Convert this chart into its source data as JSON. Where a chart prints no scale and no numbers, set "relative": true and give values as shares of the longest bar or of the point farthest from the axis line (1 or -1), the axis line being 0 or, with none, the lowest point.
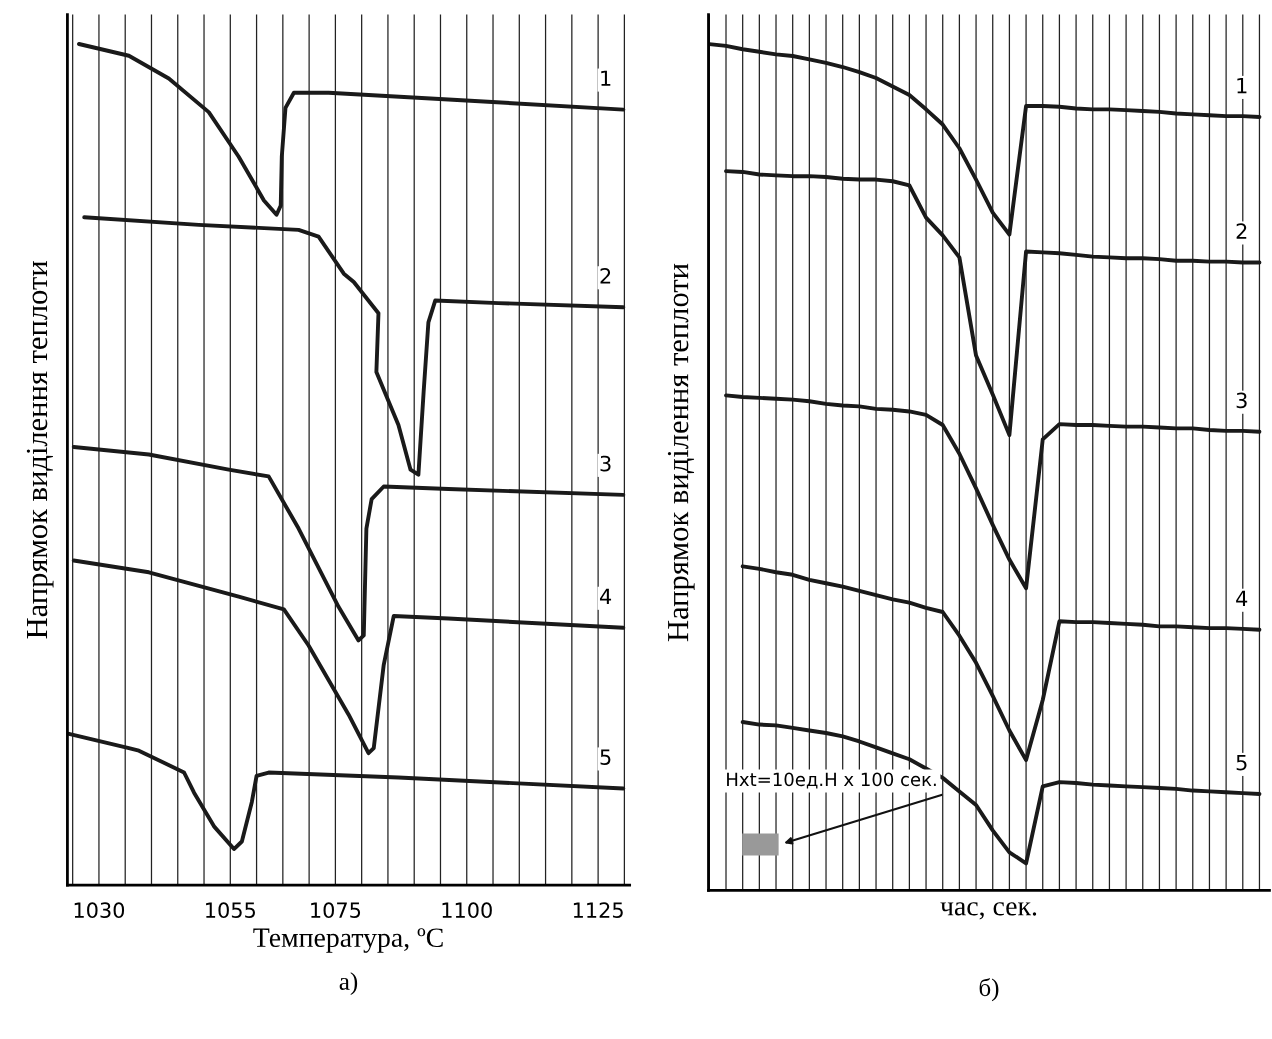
{
  "chart_data": [
    {
      "type": "line",
      "relative": true,
      "xlabel": "Температура, ºC",
      "ylabel": "Напрямок виділення теплоти",
      "annotations": [
        "а)"
      ],
      "xlim": [
        1024,
        1131
      ],
      "xticks": [
        {
          "value": 1025,
          "label": null
        },
        1030,
        {
          "value": 1035,
          "label": null
        },
        {
          "value": 1040,
          "label": null
        },
        {
          "value": 1045,
          "label": null
        },
        {
          "value": 1050,
          "label": null
        },
        1055,
        {
          "value": 1060,
          "label": null
        },
        {
          "value": 1065,
          "label": null
        },
        {
          "value": 1070,
          "label": null
        },
        1075,
        {
          "value": 1080,
          "label": null
        },
        {
          "value": 1085,
          "label": null
        },
        {
          "value": 1090,
          "label": null
        },
        {
          "value": 1095,
          "label": null
        },
        1100,
        {
          "value": 1105,
          "label": null
        },
        {
          "value": 1110,
          "label": null
        },
        {
          "value": 1115,
          "label": null
        },
        {
          "value": 1120,
          "label": null
        },
        1125,
        {
          "value": 1130,
          "label": null
        }
      ],
      "grid": "x",
      "tick_labels": "x",
      "marker": "none",
      "line_style": "solid",
      "series": [
        {
          "name": "1",
          "color": "#1a1a1a",
          "x": [
            1026.2,
            1035.7,
            1043.3,
            1050.9,
            1056.6,
            1061.4,
            1063.8,
            1064.6,
            1064.8,
            1065.5,
            1067.1,
            1073.7,
            1096.5,
            1129.8
          ],
          "values": [
            1.0,
            0.986,
            0.959,
            0.919,
            0.866,
            0.814,
            0.797,
            0.808,
            0.866,
            0.924,
            0.942,
            0.942,
            0.934,
            0.922
          ]
        },
        {
          "name": "2",
          "color": "#1a1a1a",
          "x": [
            1027.2,
            1049,
            1068,
            1071.8,
            1076.6,
            1078.5,
            1083.2,
            1082.8,
            1087,
            1089.3,
            1090.8,
            1091.8,
            1092.7,
            1094,
            1106,
            1129.8
          ],
          "values": [
            0.794,
            0.785,
            0.779,
            0.771,
            0.727,
            0.717,
            0.68,
            0.61,
            0.547,
            0.494,
            0.488,
            0.587,
            0.669,
            0.695,
            0.692,
            0.687
          ]
        },
        {
          "name": "3",
          "color": "#1a1a1a",
          "x": [
            1025.2,
            1039.5,
            1054.7,
            1062.3,
            1068,
            1075.6,
            1079.4,
            1080.4,
            1080.9,
            1081.9,
            1084.2,
            1096.5,
            1129.8
          ],
          "values": [
            0.521,
            0.512,
            0.494,
            0.486,
            0.424,
            0.331,
            0.291,
            0.297,
            0.424,
            0.459,
            0.474,
            0.471,
            0.464
          ]
        },
        {
          "name": "4",
          "color": "#1a1a1a",
          "x": [
            1025.2,
            1039.5,
            1056.6,
            1065.2,
            1069.9,
            1077.5,
            1081.3,
            1082.3,
            1084.2,
            1086.1,
            1096.5,
            1129.8
          ],
          "values": [
            0.386,
            0.372,
            0.343,
            0.328,
            0.285,
            0.203,
            0.157,
            0.163,
            0.262,
            0.32,
            0.317,
            0.306
          ]
        },
        {
          "name": "5",
          "color": "#1a1a1a",
          "x": [
            1024.3,
            1035.7,
            1037.6,
            1046.2,
            1048.1,
            1051.9,
            1055.7,
            1057.2,
            1059.1,
            1060,
            1062.3,
            1087,
            1129.8
          ],
          "values": [
            0.18,
            0.163,
            0.16,
            0.134,
            0.11,
            0.07,
            0.043,
            0.052,
            0.099,
            0.13,
            0.134,
            0.128,
            0.115
          ]
        }
      ]
    },
    {
      "type": "line",
      "relative": true,
      "xlabel": "час, сек.",
      "ylabel": "Напрямок виділення теплоти",
      "annotations": [
        "б)",
        "Hxt=10ед.Н x 100 сек."
      ],
      "categories": [
        null,
        null,
        null,
        null,
        null,
        null,
        null,
        null,
        null,
        null,
        null,
        null,
        null,
        null,
        null,
        null,
        null,
        null,
        null,
        null,
        null,
        null,
        null,
        null,
        null,
        null,
        null,
        null,
        null,
        null,
        null,
        null,
        null,
        null
      ],
      "grid": "x",
      "tick_labels": false,
      "marker": "none",
      "line_style": "solid",
      "series": [
        {
          "name": "1",
          "color": "#1a1a1a",
          "values": [
            1.0,
            0.998,
            0.994,
            0.991,
            0.988,
            0.986,
            0.982,
            0.978,
            0.973,
            0.967,
            0.96,
            0.95,
            0.94,
            0.923,
            0.905,
            0.877,
            0.84,
            0.801,
            0.775,
            0.927,
            0.927,
            0.926,
            0.924,
            0.923,
            0.923,
            0.922,
            0.921,
            0.92,
            0.918,
            0.917,
            0.916,
            0.915,
            0.915,
            0.914
          ]
        },
        {
          "name": "2",
          "color": "#1a1a1a",
          "values": [
            null,
            0.85,
            0.849,
            0.846,
            0.845,
            0.844,
            0.844,
            0.843,
            0.841,
            0.84,
            0.84,
            0.838,
            0.833,
            0.795,
            0.774,
            0.748,
            0.632,
            0.586,
            0.538,
            0.755,
            0.754,
            0.753,
            0.751,
            0.749,
            0.748,
            0.747,
            0.747,
            0.746,
            0.744,
            0.744,
            0.743,
            0.743,
            0.742,
            0.742
          ]
        },
        {
          "name": "3",
          "color": "#1a1a1a",
          "values": [
            null,
            0.585,
            0.583,
            0.582,
            0.581,
            0.58,
            0.578,
            0.575,
            0.573,
            0.572,
            0.569,
            0.568,
            0.566,
            0.562,
            0.55,
            0.516,
            0.475,
            0.432,
            0.391,
            0.357,
            0.533,
            0.551,
            0.55,
            0.55,
            0.549,
            0.548,
            0.548,
            0.547,
            0.546,
            0.546,
            0.544,
            0.543,
            0.543,
            0.542
          ]
        },
        {
          "name": "4",
          "color": "#1a1a1a",
          "values": [
            null,
            null,
            0.383,
            0.38,
            0.376,
            0.373,
            0.367,
            0.363,
            0.359,
            0.354,
            0.349,
            0.344,
            0.34,
            0.334,
            0.329,
            0.301,
            0.269,
            0.23,
            0.189,
            0.154,
            0.225,
            0.318,
            0.317,
            0.317,
            0.316,
            0.315,
            0.314,
            0.312,
            0.312,
            0.311,
            0.31,
            0.31,
            0.309,
            0.308
          ]
        },
        {
          "name": "5",
          "color": "#1a1a1a",
          "values": [
            null,
            null,
            0.199,
            0.196,
            0.195,
            0.192,
            0.189,
            0.186,
            0.182,
            0.176,
            0.169,
            0.162,
            0.155,
            0.144,
            0.133,
            0.117,
            0.101,
            0.071,
            0.045,
            0.032,
            0.123,
            0.128,
            0.127,
            0.125,
            0.124,
            0.123,
            0.122,
            0.121,
            0.12,
            0.118,
            0.117,
            0.116,
            0.115,
            0.114
          ]
        }
      ]
    }
  ]
}
